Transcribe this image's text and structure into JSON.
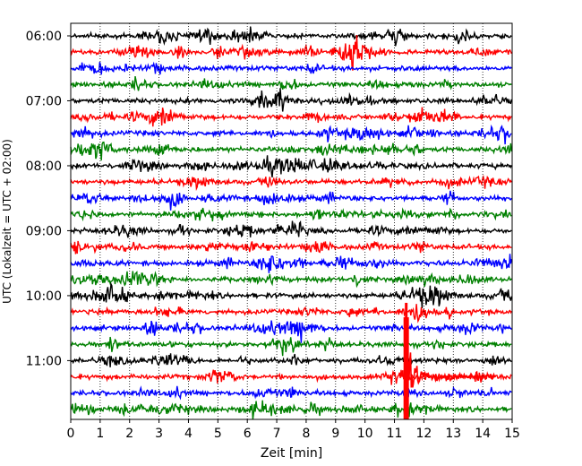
{
  "chart_data": {
    "type": "line",
    "title": "",
    "xlabel": "Zeit  [min]",
    "ylabel": "UTC (Lokalzeit = UTC + 02:00)",
    "xlim": [
      0,
      15
    ],
    "x_ticks": [
      "0",
      "1",
      "2",
      "3",
      "4",
      "5",
      "6",
      "7",
      "8",
      "9",
      "10",
      "11",
      "12",
      "13",
      "14",
      "15"
    ],
    "y_ticks": [
      {
        "label": "06:00",
        "trace": 0
      },
      {
        "label": "07:00",
        "trace": 4
      },
      {
        "label": "08:00",
        "trace": 8
      },
      {
        "label": "09:00",
        "trace": 12
      },
      {
        "label": "10:00",
        "trace": 16
      },
      {
        "label": "11:00",
        "trace": 20
      }
    ],
    "grid": {
      "x": true,
      "style": "dotted"
    },
    "legend": "none",
    "trace_count": 24,
    "trace_interval_minutes": 15,
    "start_time": "06:00",
    "colors": [
      "#000000",
      "#ff0000",
      "#0000ff",
      "#008000"
    ],
    "color_cycle": [
      "black",
      "red",
      "blue",
      "green"
    ],
    "event": {
      "trace": 21,
      "time_min": 11.4,
      "color": "#ff0000"
    }
  }
}
